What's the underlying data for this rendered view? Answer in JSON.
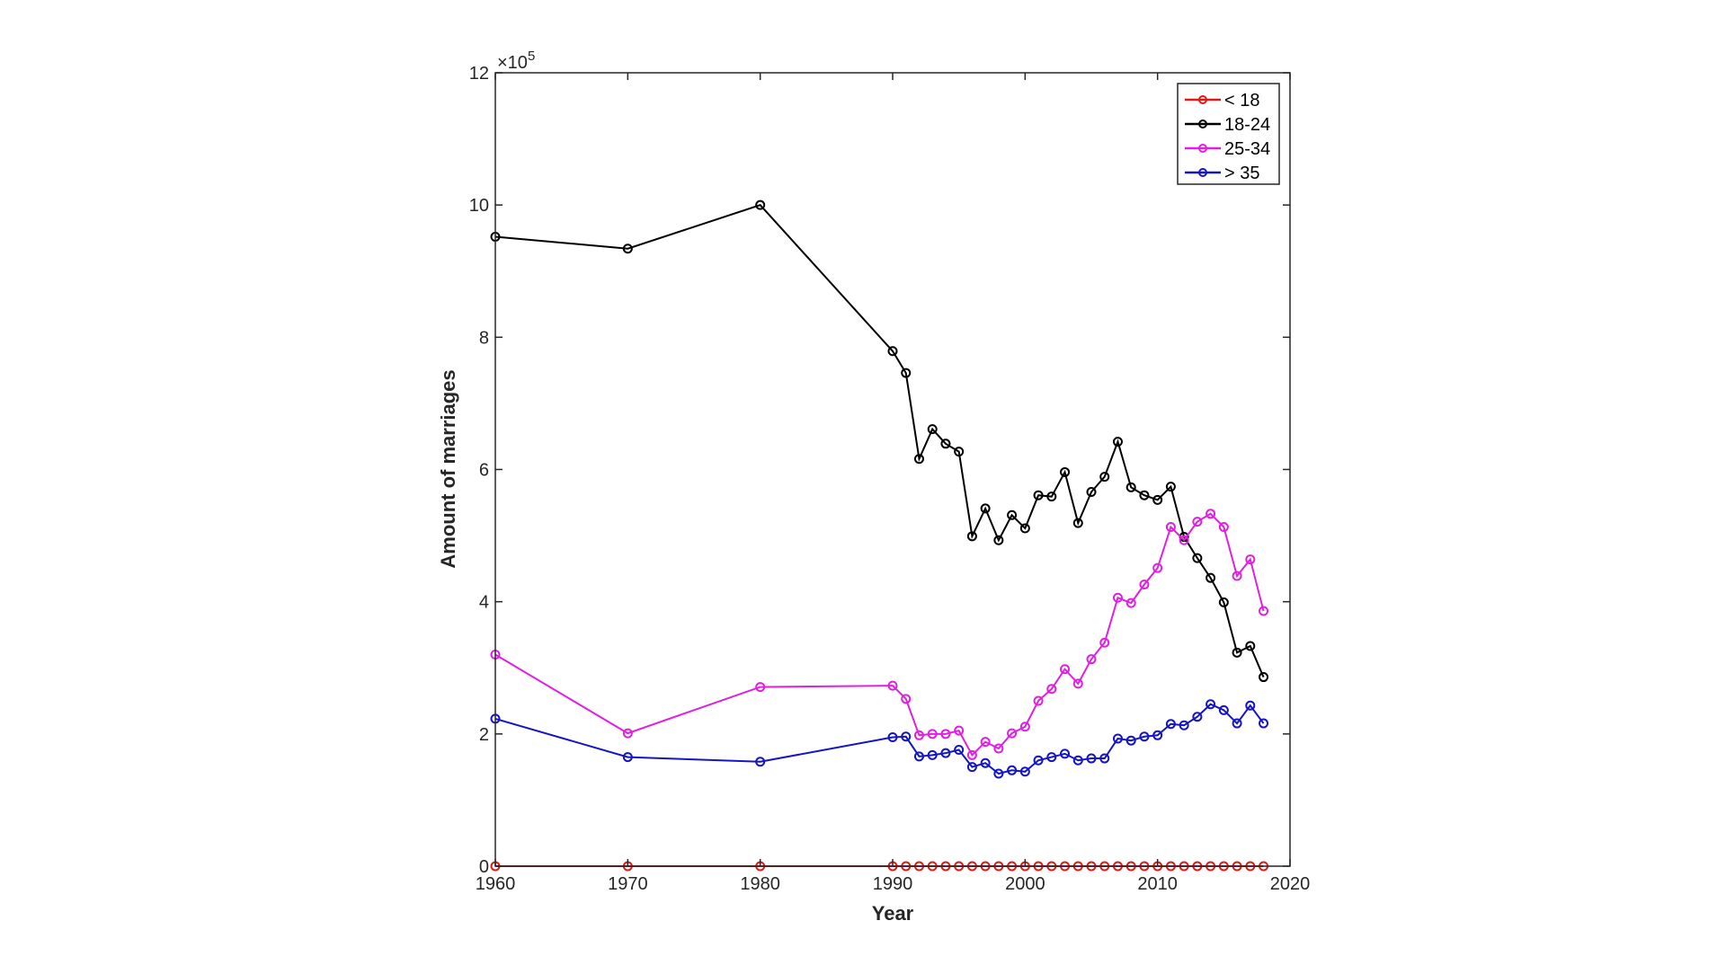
{
  "chart_data": {
    "type": "line",
    "title": "",
    "xlabel": "Year",
    "ylabel": "Amount of marriages",
    "y_exponent_label": "×10",
    "y_exponent": "5",
    "xlim": [
      1960,
      2020
    ],
    "ylim": [
      0,
      12
    ],
    "y_scale_factor": 100000,
    "xticks": [
      1960,
      1970,
      1980,
      1990,
      2000,
      2010,
      2020
    ],
    "yticks": [
      0,
      2,
      4,
      6,
      8,
      10,
      12
    ],
    "grid": false,
    "legend_placement": "top-right",
    "x": [
      1960,
      1970,
      1980,
      1990,
      1991,
      1992,
      1993,
      1994,
      1995,
      1996,
      1997,
      1998,
      1999,
      2000,
      2001,
      2002,
      2003,
      2004,
      2005,
      2006,
      2007,
      2008,
      2009,
      2010,
      2011,
      2012,
      2013,
      2014,
      2015,
      2016,
      2017,
      2018
    ],
    "series": [
      {
        "name": "< 18",
        "color": "#e01818",
        "values": [
          0,
          0,
          0,
          0,
          0,
          0,
          0,
          0,
          0,
          0,
          0,
          0,
          0,
          0,
          0,
          0,
          0,
          0,
          0,
          0,
          0,
          0,
          0,
          0,
          0,
          0,
          0,
          0,
          0,
          0,
          0,
          0
        ]
      },
      {
        "name": "18-24",
        "color": "#000000",
        "values": [
          9.52,
          9.34,
          10.0,
          7.79,
          7.46,
          6.16,
          6.61,
          6.39,
          6.27,
          4.99,
          5.41,
          4.93,
          5.31,
          5.11,
          5.61,
          5.59,
          5.96,
          5.19,
          5.66,
          5.89,
          6.42,
          5.73,
          5.61,
          5.54,
          5.74,
          4.98,
          4.66,
          4.36,
          3.99,
          3.23,
          3.33,
          2.86
        ]
      },
      {
        "name": "25-34",
        "color": "#e020e0",
        "values": [
          3.2,
          2.01,
          2.71,
          2.73,
          2.53,
          1.98,
          2.0,
          2.0,
          2.05,
          1.68,
          1.88,
          1.78,
          2.01,
          2.11,
          2.5,
          2.68,
          2.98,
          2.76,
          3.13,
          3.38,
          4.06,
          3.98,
          4.26,
          4.51,
          5.13,
          4.93,
          5.21,
          5.33,
          5.13,
          4.39,
          4.64,
          3.86
        ]
      },
      {
        "name": "> 35",
        "color": "#1414c8",
        "values": [
          2.23,
          1.65,
          1.58,
          1.95,
          1.96,
          1.66,
          1.68,
          1.71,
          1.76,
          1.5,
          1.56,
          1.4,
          1.45,
          1.43,
          1.6,
          1.65,
          1.7,
          1.6,
          1.63,
          1.63,
          1.93,
          1.9,
          1.96,
          1.98,
          2.15,
          2.13,
          2.26,
          2.45,
          2.36,
          2.16,
          2.43,
          2.16
        ]
      }
    ]
  }
}
